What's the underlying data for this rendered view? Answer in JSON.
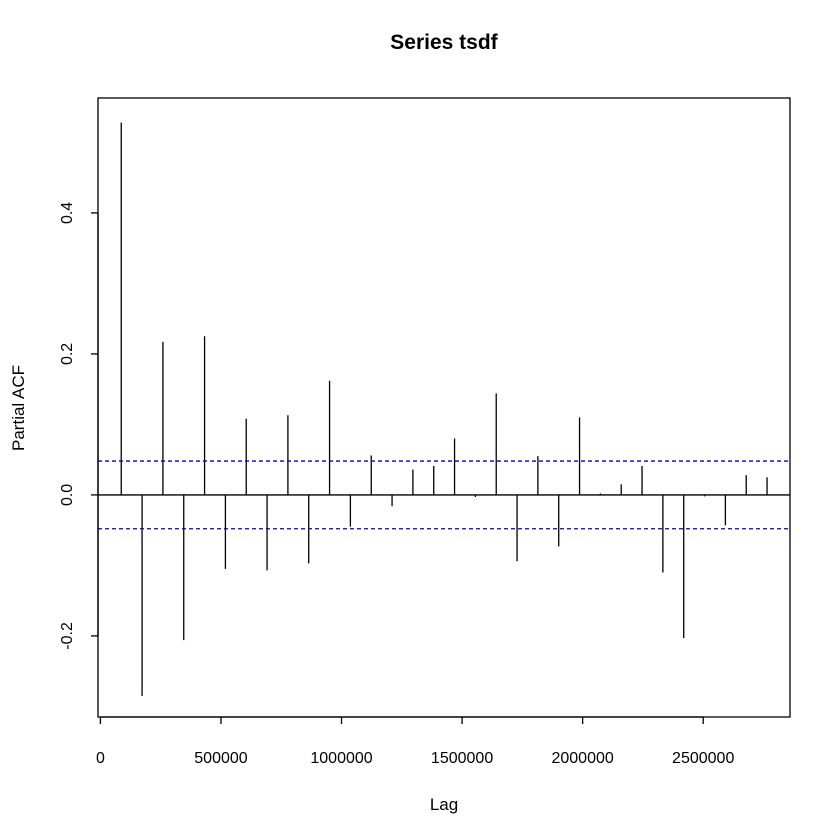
{
  "chart_data": {
    "type": "bar",
    "title": "Series  tsdf",
    "xlabel": "Lag",
    "ylabel": "Partial ACF",
    "xlim": [
      -10000,
      2860000
    ],
    "ylim": [
      -0.315,
      0.563
    ],
    "xticks": [
      0,
      500000,
      1000000,
      1500000,
      2000000,
      2500000
    ],
    "xtick_labels": [
      "0",
      "500000",
      "1000000",
      "1500000",
      "2000000",
      "2500000"
    ],
    "yticks": [
      -0.2,
      0.0,
      0.2,
      0.4
    ],
    "ytick_labels": [
      "-0.2",
      "0.0",
      "0.2",
      "0.4"
    ],
    "confidence_bound": 0.048,
    "colors": {
      "bars": "#000000",
      "confidence": "#0000cc",
      "zero_line": "#000000"
    },
    "lag_step": 86400,
    "lags": [
      86400,
      172800,
      259200,
      345600,
      432000,
      518400,
      604800,
      691200,
      777600,
      864000,
      950400,
      1036800,
      1123200,
      1209600,
      1296000,
      1382400,
      1468800,
      1555200,
      1641600,
      1728000,
      1814400,
      1900800,
      1987200,
      2073600,
      2160000,
      2246400,
      2332800,
      2419200,
      2505600,
      2592000,
      2678400,
      2764800
    ],
    "values": [
      0.528,
      -0.285,
      0.217,
      -0.206,
      0.225,
      -0.105,
      0.108,
      -0.107,
      0.113,
      -0.097,
      0.162,
      -0.045,
      0.056,
      -0.016,
      0.036,
      0.041,
      0.08,
      -0.003,
      0.144,
      -0.094,
      0.055,
      -0.073,
      0.11,
      0.002,
      0.015,
      0.041,
      -0.11,
      -0.203,
      -0.002,
      -0.043,
      0.028,
      0.025
    ]
  }
}
